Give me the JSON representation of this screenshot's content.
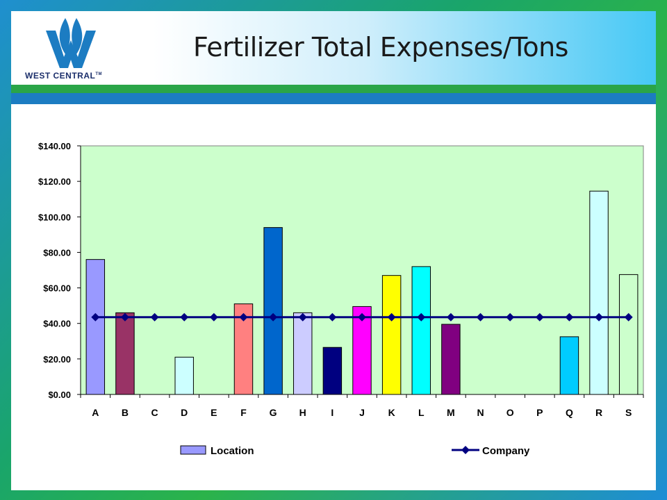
{
  "slide": {
    "title": "Fertilizer Total Expenses/Tons",
    "logo_text": "WEST CENTRAL",
    "logo_tm": "TM"
  },
  "colors": {
    "plot_bg": "#ccffcc",
    "line": "#000080",
    "header_accent": "#46c8f5",
    "band_green": "#2aa548",
    "band_blue": "#1c7cc2",
    "logo_blue": "#1c7cc2"
  },
  "chart_data": {
    "type": "bar",
    "title": "",
    "xlabel": "",
    "ylabel": "",
    "categories": [
      "A",
      "B",
      "C",
      "D",
      "E",
      "F",
      "G",
      "H",
      "I",
      "J",
      "K",
      "L",
      "M",
      "N",
      "O",
      "P",
      "Q",
      "R",
      "S"
    ],
    "ylim": [
      0,
      140
    ],
    "yticks": [
      0,
      20,
      40,
      60,
      80,
      100,
      120,
      140
    ],
    "ytick_labels": [
      "$0.00",
      "$20.00",
      "$40.00",
      "$60.00",
      "$80.00",
      "$100.00",
      "$120.00",
      "$140.00"
    ],
    "grid": false,
    "legend_position": "bottom",
    "series": [
      {
        "name": "Location",
        "type": "bar",
        "values": [
          76,
          46,
          0,
          21,
          0,
          51,
          94,
          46,
          26.5,
          49.5,
          67,
          72,
          39.5,
          0,
          0,
          0,
          32.5,
          114.5,
          67.5
        ],
        "colors": [
          "#9999ff",
          "#993366",
          "#ffffcc",
          "#ccffff",
          "#660066",
          "#ff8080",
          "#0066cc",
          "#ccccff",
          "#000080",
          "#ff00ff",
          "#ffff00",
          "#00ffff",
          "#800080",
          "#800000",
          "#008080",
          "#0000ff",
          "#00ccff",
          "#ccffff",
          "#ccffcc"
        ],
        "legend_color": "#9999ff"
      },
      {
        "name": "Company",
        "type": "line",
        "values": [
          43.5,
          43.5,
          43.5,
          43.5,
          43.5,
          43.5,
          43.5,
          43.5,
          43.5,
          43.5,
          43.5,
          43.5,
          43.5,
          43.5,
          43.5,
          43.5,
          43.5,
          43.5,
          43.5
        ],
        "color": "#000080",
        "marker": "diamond"
      }
    ]
  }
}
